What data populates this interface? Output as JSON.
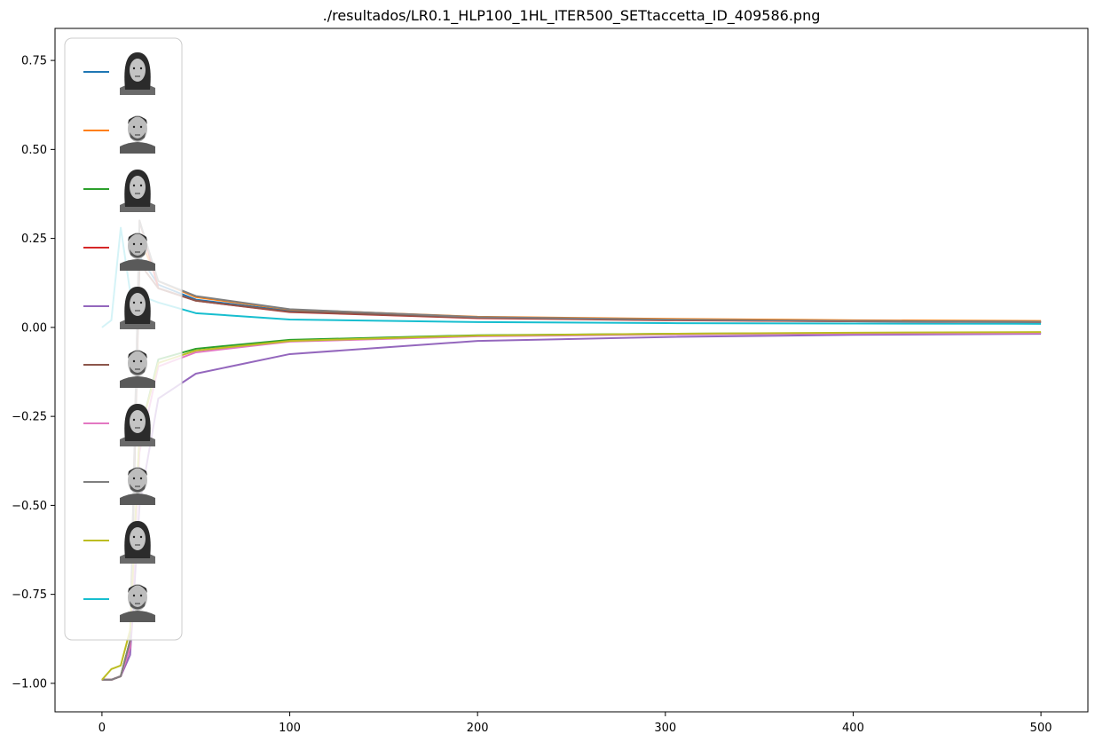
{
  "chart_data": {
    "type": "line",
    "title": "./resultados/LR0.1_HLP100_1HL_ITER500_SETtaccetta_ID_409586.png",
    "xlabel": "",
    "ylabel": "",
    "xlim": [
      -25,
      525
    ],
    "ylim": [
      -1.08,
      0.84
    ],
    "x_ticks": [
      0,
      100,
      200,
      300,
      400,
      500
    ],
    "y_ticks": [
      0.75,
      0.5,
      0.25,
      0.0,
      -0.25,
      -0.5,
      -0.75,
      -1.0
    ],
    "x_tick_labels": [
      "0",
      "100",
      "200",
      "300",
      "400",
      "500"
    ],
    "y_tick_labels": [
      "0.75",
      "0.50",
      "0.25",
      "0.00",
      "−0.25",
      "−0.50",
      "−0.75",
      "−1.00"
    ],
    "grid": false,
    "legend_placement": "upper-left",
    "legend_entries": [
      "female face",
      "male face",
      "female face",
      "male face",
      "female face",
      "male face",
      "female face",
      "male face",
      "female face",
      "male face"
    ],
    "series": [
      {
        "color": "#1f77b4",
        "x": [
          0,
          5,
          10,
          15,
          20,
          30,
          50,
          100,
          200,
          300,
          400,
          500
        ],
        "values": [
          -0.99,
          -0.99,
          -0.98,
          -0.9,
          0.2,
          0.12,
          0.078,
          0.046,
          0.027,
          0.021,
          0.017,
          0.015
        ]
      },
      {
        "color": "#ff7f0e",
        "x": [
          0,
          5,
          10,
          15,
          20,
          30,
          50,
          100,
          200,
          300,
          400,
          500
        ],
        "values": [
          -0.99,
          -0.99,
          -0.98,
          -0.88,
          0.25,
          0.13,
          0.085,
          0.05,
          0.03,
          0.024,
          0.02,
          0.018
        ]
      },
      {
        "color": "#2ca02c",
        "x": [
          0,
          5,
          10,
          15,
          20,
          30,
          50,
          100,
          200,
          300,
          400,
          500
        ],
        "values": [
          -0.99,
          -0.99,
          -0.98,
          -0.88,
          -0.3,
          -0.09,
          -0.06,
          -0.035,
          -0.022,
          -0.018,
          -0.016,
          -0.015
        ]
      },
      {
        "color": "#d62728",
        "x": [
          0,
          5,
          10,
          15,
          20,
          30,
          50,
          100,
          200,
          300,
          400,
          500
        ],
        "values": [
          -0.99,
          -0.99,
          -0.98,
          -0.9,
          0.3,
          0.11,
          0.075,
          0.043,
          0.026,
          0.02,
          0.017,
          0.015
        ]
      },
      {
        "color": "#9467bd",
        "x": [
          0,
          5,
          10,
          15,
          20,
          30,
          50,
          100,
          200,
          300,
          400,
          500
        ],
        "values": [
          -0.99,
          -0.99,
          -0.98,
          -0.92,
          -0.5,
          -0.2,
          -0.13,
          -0.075,
          -0.038,
          -0.027,
          -0.021,
          -0.018
        ]
      },
      {
        "color": "#8c564b",
        "x": [
          0,
          5,
          10,
          15,
          20,
          30,
          50,
          100,
          200,
          300,
          400,
          500
        ],
        "values": [
          -0.99,
          -0.99,
          -0.98,
          -0.9,
          0.18,
          0.11,
          0.075,
          0.044,
          0.027,
          0.021,
          0.018,
          0.016
        ]
      },
      {
        "color": "#e377c2",
        "x": [
          0,
          5,
          10,
          15,
          20,
          30,
          50,
          100,
          200,
          300,
          400,
          500
        ],
        "values": [
          -0.99,
          -0.99,
          -0.98,
          -0.9,
          -0.35,
          -0.11,
          -0.07,
          -0.04,
          -0.025,
          -0.02,
          -0.017,
          -0.016
        ]
      },
      {
        "color": "#7f7f7f",
        "x": [
          0,
          5,
          10,
          15,
          20,
          30,
          50,
          100,
          200,
          300,
          400,
          500
        ],
        "values": [
          -0.99,
          -0.99,
          -0.98,
          -0.88,
          0.3,
          0.13,
          0.088,
          0.051,
          0.029,
          0.022,
          0.018,
          0.016
        ]
      },
      {
        "color": "#bcbd22",
        "x": [
          0,
          5,
          10,
          15,
          20,
          30,
          50,
          100,
          200,
          300,
          400,
          500
        ],
        "values": [
          -0.99,
          -0.96,
          -0.95,
          -0.85,
          -0.3,
          -0.1,
          -0.065,
          -0.038,
          -0.023,
          -0.018,
          -0.015,
          -0.013
        ]
      },
      {
        "color": "#17becf",
        "x": [
          0,
          5,
          10,
          15,
          20,
          30,
          50,
          100,
          200,
          300,
          400,
          500
        ],
        "values": [
          0.0,
          0.02,
          0.28,
          0.1,
          0.09,
          0.07,
          0.04,
          0.022,
          0.015,
          0.012,
          0.011,
          0.01
        ]
      }
    ]
  }
}
